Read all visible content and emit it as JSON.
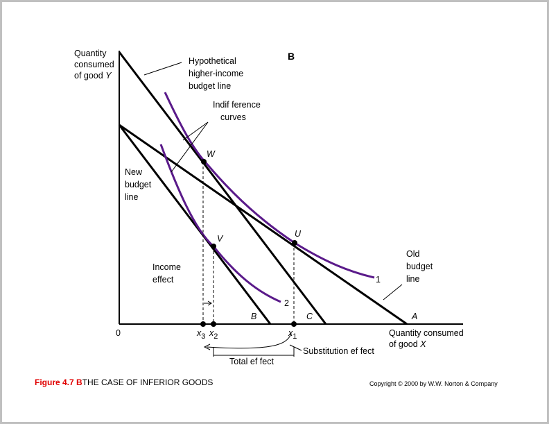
{
  "panel_label": "B",
  "y_axis_label": [
    "Quantity",
    "consumed",
    "of good",
    "Y"
  ],
  "x_axis_label": [
    "Quantity consumed",
    "of good",
    "X"
  ],
  "origin": "0",
  "hypothetical_label": [
    "Hypothetical",
    "higher-income",
    "budget line"
  ],
  "indifference_label": [
    "Indif ference",
    "curves"
  ],
  "new_budget_label": [
    "New",
    "budget",
    "line"
  ],
  "old_budget_label": [
    "Old",
    "budget",
    "line"
  ],
  "income_effect_label": [
    "Income",
    "effect"
  ],
  "points": {
    "W": "W",
    "U": "U",
    "V": "V"
  },
  "curve_labels": [
    "1",
    "2"
  ],
  "intercepts": [
    "B",
    "C",
    "A"
  ],
  "x_ticks": [
    {
      "symbol": "x",
      "subscript": "3"
    },
    {
      "symbol": "x",
      "subscript": "2"
    },
    {
      "symbol": "x",
      "subscript": "1"
    }
  ],
  "substitution_effect": "Substitution ef fect",
  "total_effect": "Total ef fect",
  "caption": {
    "figure": "Figure 4.7 B",
    "title": "THE CASE OF INFERIOR GOODS"
  },
  "copyright": "Copyright © 2000 by W.W. Norton & Company"
}
